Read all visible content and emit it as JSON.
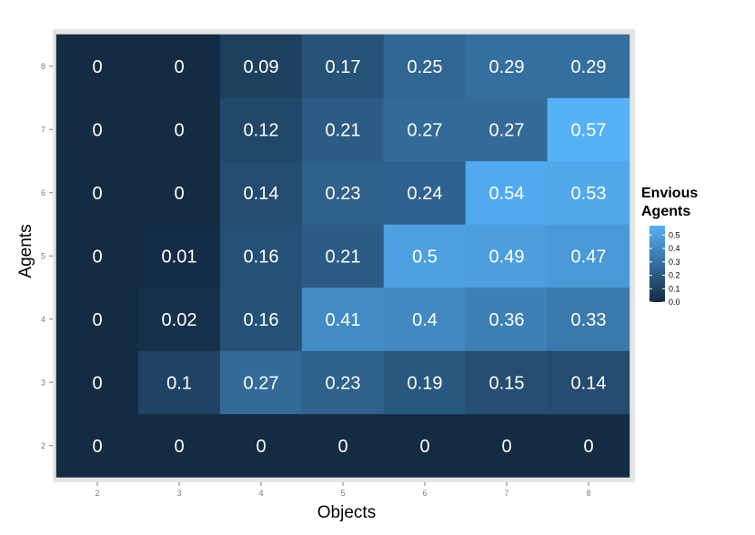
{
  "chart_data": {
    "type": "heatmap",
    "xlabel": "Objects",
    "ylabel": "Agents",
    "x_categories": [
      "2",
      "3",
      "4",
      "5",
      "6",
      "7",
      "8"
    ],
    "y_categories": [
      "2",
      "3",
      "4",
      "5",
      "6",
      "7",
      "8"
    ],
    "values": [
      [
        0,
        0,
        0,
        0,
        0,
        0,
        0
      ],
      [
        0,
        0.1,
        0.27,
        0.23,
        0.19,
        0.15,
        0.14
      ],
      [
        0,
        0.02,
        0.16,
        0.41,
        0.4,
        0.36,
        0.33
      ],
      [
        0,
        0.01,
        0.16,
        0.21,
        0.5,
        0.49,
        0.47
      ],
      [
        0,
        0,
        0.14,
        0.23,
        0.24,
        0.54,
        0.53
      ],
      [
        0,
        0,
        0.12,
        0.21,
        0.27,
        0.27,
        0.57
      ],
      [
        0,
        0,
        0.09,
        0.17,
        0.25,
        0.29,
        0.29
      ]
    ],
    "cell_labels": [
      [
        "0",
        "0",
        "0",
        "0",
        "0",
        "0",
        "0"
      ],
      [
        "0",
        "0.1",
        "0.27",
        "0.23",
        "0.19",
        "0.15",
        "0.14"
      ],
      [
        "0",
        "0.02",
        "0.16",
        "0.41",
        "0.4",
        "0.36",
        "0.33"
      ],
      [
        "0",
        "0.01",
        "0.16",
        "0.21",
        "0.5",
        "0.49",
        "0.47"
      ],
      [
        "0",
        "0",
        "0.14",
        "0.23",
        "0.24",
        "0.54",
        "0.53"
      ],
      [
        "0",
        "0",
        "0.12",
        "0.21",
        "0.27",
        "0.27",
        "0.57"
      ],
      [
        "0",
        "0",
        "0.09",
        "0.17",
        "0.25",
        "0.29",
        "0.29"
      ]
    ],
    "legend": {
      "title_lines": [
        "Envious",
        "Agents"
      ],
      "ticks": [
        0.0,
        0.1,
        0.2,
        0.3,
        0.4,
        0.5
      ],
      "tick_labels": [
        "0.0",
        "0.1",
        "0.2",
        "0.3",
        "0.4",
        "0.5"
      ],
      "placement": "right"
    },
    "color_scale": {
      "low": "#132b43",
      "high": "#56b1f7",
      "domain": [
        0,
        0.57
      ]
    },
    "panel_background": "#e5e5e5",
    "grid": true
  }
}
